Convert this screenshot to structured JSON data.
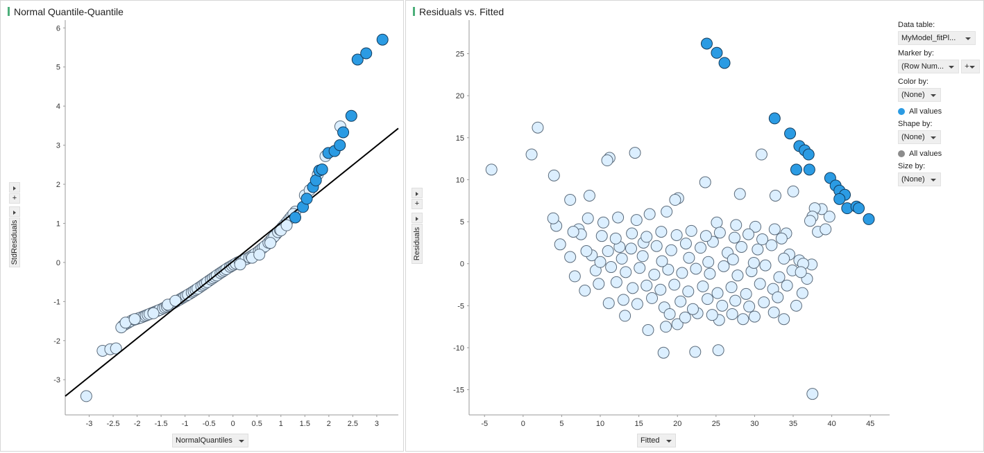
{
  "qq_panel": {
    "title": "Normal Quantile-Quantile",
    "x_button_label": "NormalQuantiles",
    "y_button_label": "StdResiduals",
    "plus_label": "+"
  },
  "rf_panel": {
    "title": "Residuals vs. Fitted",
    "x_button_label": "Fitted",
    "y_button_label": "Residuals",
    "plus_label": "+"
  },
  "legend": {
    "data_table_label": "Data table:",
    "data_table_value": "MyModel_fitPl...",
    "marker_by_label": "Marker by:",
    "marker_by_value": "(Row Num...",
    "marker_plus_label": "+",
    "color_by_label": "Color by:",
    "color_by_value": "(None)",
    "color_item_label": "All values",
    "color_item_color": "#2b9be3",
    "shape_by_label": "Shape by:",
    "shape_by_value": "(None)",
    "shape_item_label": "All values",
    "shape_item_color": "#8c8c8c",
    "size_by_label": "Size by:",
    "size_by_value": "(None)"
  },
  "colors": {
    "point_fill": "#dcefff",
    "point_stroke": "#5a6a7a",
    "marked_fill": "#2b9be3",
    "marked_stroke": "#123a5a",
    "ref_line": "#000000"
  },
  "chart_data": [
    {
      "type": "scatter",
      "title": "Normal Quantile-Quantile",
      "xlabel": "NormalQuantiles",
      "ylabel": "StdResiduals",
      "xlim": [
        -3.5,
        3.45
      ],
      "ylim": [
        -3.9,
        6.2
      ],
      "xticks": [
        -3,
        -2.5,
        -2,
        -1.5,
        -1,
        -0.5,
        0,
        0.5,
        1,
        1.5,
        2,
        2.5,
        3
      ],
      "yticks": [
        -3,
        -2,
        -1,
        0,
        1,
        2,
        3,
        4,
        5,
        6
      ],
      "reference_line": {
        "x": [
          -3.5,
          3.45
        ],
        "y": [
          -3.42,
          3.43
        ]
      },
      "qq_curve": {
        "x": [
          -2.3,
          -2.1,
          -1.9,
          -1.7,
          -1.5,
          -1.3,
          -1.1,
          -0.9,
          -0.7,
          -0.5,
          -0.3,
          -0.1,
          0.1,
          0.3,
          0.5,
          0.7,
          0.9,
          1.1,
          1.3
        ],
        "y": [
          -1.62,
          -1.48,
          -1.4,
          -1.3,
          -1.2,
          -1.08,
          -0.94,
          -0.8,
          -0.64,
          -0.47,
          -0.3,
          -0.14,
          0.0,
          0.1,
          0.25,
          0.45,
          0.72,
          1.0,
          1.3
        ]
      },
      "points_unmarked": [
        {
          "x": -3.06,
          "y": -3.42
        },
        {
          "x": -2.72,
          "y": -2.26
        },
        {
          "x": -2.56,
          "y": -2.22
        },
        {
          "x": -2.44,
          "y": -2.2
        },
        {
          "x": -2.33,
          "y": -1.66
        },
        {
          "x": -2.24,
          "y": -1.54
        },
        {
          "x": -2.05,
          "y": -1.45
        },
        {
          "x": -1.66,
          "y": -1.3
        },
        {
          "x": -1.36,
          "y": -1.08
        },
        {
          "x": -1.2,
          "y": -0.98
        },
        {
          "x": 0.15,
          "y": -0.05
        },
        {
          "x": 0.4,
          "y": 0.12
        },
        {
          "x": 0.55,
          "y": 0.2
        },
        {
          "x": 0.78,
          "y": 0.5
        },
        {
          "x": 1.0,
          "y": 0.82
        },
        {
          "x": 1.12,
          "y": 0.95
        },
        {
          "x": 1.5,
          "y": 1.72
        },
        {
          "x": 1.6,
          "y": 1.85
        },
        {
          "x": 1.77,
          "y": 2.25
        },
        {
          "x": 1.93,
          "y": 2.72
        },
        {
          "x": 2.24,
          "y": 3.48
        }
      ],
      "points_marked": [
        {
          "x": 1.3,
          "y": 1.15
        },
        {
          "x": 1.46,
          "y": 1.42
        },
        {
          "x": 1.54,
          "y": 1.63
        },
        {
          "x": 1.67,
          "y": 1.93
        },
        {
          "x": 1.73,
          "y": 2.1
        },
        {
          "x": 1.8,
          "y": 2.35
        },
        {
          "x": 1.86,
          "y": 2.38
        },
        {
          "x": 1.99,
          "y": 2.8
        },
        {
          "x": 2.12,
          "y": 2.85
        },
        {
          "x": 2.23,
          "y": 3.0
        },
        {
          "x": 2.3,
          "y": 3.33
        },
        {
          "x": 2.47,
          "y": 3.75
        },
        {
          "x": 2.6,
          "y": 5.19
        },
        {
          "x": 2.78,
          "y": 5.35
        },
        {
          "x": 3.12,
          "y": 5.7
        }
      ]
    },
    {
      "type": "scatter",
      "title": "Residuals vs. Fitted",
      "xlabel": "Fitted",
      "ylabel": "Residuals",
      "xlim": [
        -7,
        47.5
      ],
      "ylim": [
        -18,
        29
      ],
      "xticks": [
        -5,
        0,
        5,
        10,
        15,
        20,
        25,
        30,
        35,
        40,
        45
      ],
      "yticks": [
        -15,
        -10,
        -5,
        0,
        5,
        10,
        15,
        20,
        25
      ],
      "points_unmarked": [
        {
          "x": -4.1,
          "y": 11.2
        },
        {
          "x": 1.9,
          "y": 16.2
        },
        {
          "x": 1.1,
          "y": 13.0
        },
        {
          "x": 4.0,
          "y": 10.5
        },
        {
          "x": 11.2,
          "y": 12.6
        },
        {
          "x": 10.9,
          "y": 12.3
        },
        {
          "x": 14.5,
          "y": 13.2
        },
        {
          "x": 8.6,
          "y": 8.1
        },
        {
          "x": 6.1,
          "y": 7.6
        },
        {
          "x": 30.9,
          "y": 13.0
        },
        {
          "x": 23.6,
          "y": 9.7
        },
        {
          "x": 32.7,
          "y": 8.1
        },
        {
          "x": 35.0,
          "y": 8.6
        },
        {
          "x": 28.1,
          "y": 8.3
        },
        {
          "x": 20.1,
          "y": 7.8
        },
        {
          "x": 19.7,
          "y": 7.6
        },
        {
          "x": 18.2,
          "y": -10.6
        },
        {
          "x": 22.3,
          "y": -10.5
        },
        {
          "x": 25.3,
          "y": -10.3
        },
        {
          "x": 37.5,
          "y": -15.5
        },
        {
          "x": 39.7,
          "y": 5.6
        },
        {
          "x": 38.7,
          "y": 6.5
        },
        {
          "x": 37.8,
          "y": 6.6
        },
        {
          "x": 37.5,
          "y": 5.6
        },
        {
          "x": 37.2,
          "y": 5.1
        },
        {
          "x": 38.2,
          "y": 3.8
        },
        {
          "x": 39.2,
          "y": 4.1
        },
        {
          "x": 37.4,
          "y": -0.1
        },
        {
          "x": 36.8,
          "y": -1.8
        },
        {
          "x": 36.2,
          "y": -3.5
        },
        {
          "x": 35.4,
          "y": -5.0
        },
        {
          "x": 33.8,
          "y": -6.6
        },
        {
          "x": 32.5,
          "y": -5.8
        },
        {
          "x": 30.0,
          "y": -6.3
        },
        {
          "x": 27.1,
          "y": -6.0
        },
        {
          "x": 25.4,
          "y": -6.7
        },
        {
          "x": 22.6,
          "y": -5.9
        },
        {
          "x": 20.0,
          "y": -7.2
        },
        {
          "x": 18.5,
          "y": -7.5
        },
        {
          "x": 16.2,
          "y": -7.9
        },
        {
          "x": 13.2,
          "y": -6.2
        },
        {
          "x": 11.1,
          "y": -4.7
        },
        {
          "x": 8.0,
          "y": -3.2
        },
        {
          "x": 6.7,
          "y": -1.5
        },
        {
          "x": 6.1,
          "y": 0.8
        },
        {
          "x": 4.8,
          "y": 2.3
        },
        {
          "x": 4.3,
          "y": 4.5
        },
        {
          "x": 3.9,
          "y": 5.4
        },
        {
          "x": 7.2,
          "y": 4.1
        },
        {
          "x": 8.4,
          "y": 5.4
        },
        {
          "x": 10.4,
          "y": 4.9
        },
        {
          "x": 12.3,
          "y": 5.5
        },
        {
          "x": 14.7,
          "y": 5.2
        },
        {
          "x": 16.4,
          "y": 5.9
        },
        {
          "x": 18.6,
          "y": 6.2
        },
        {
          "x": 25.1,
          "y": 4.9
        },
        {
          "x": 27.6,
          "y": 4.6
        },
        {
          "x": 30.1,
          "y": 4.4
        },
        {
          "x": 32.6,
          "y": 4.1
        },
        {
          "x": 34.1,
          "y": 3.6
        },
        {
          "x": 8.9,
          "y": 1.0
        },
        {
          "x": 11.0,
          "y": 1.5
        },
        {
          "x": 12.5,
          "y": 2.0
        },
        {
          "x": 14.0,
          "y": 1.8
        },
        {
          "x": 15.6,
          "y": 2.5
        },
        {
          "x": 17.3,
          "y": 2.1
        },
        {
          "x": 19.2,
          "y": 1.6
        },
        {
          "x": 21.1,
          "y": 2.4
        },
        {
          "x": 23.0,
          "y": 1.9
        },
        {
          "x": 24.6,
          "y": 2.6
        },
        {
          "x": 26.5,
          "y": 1.3
        },
        {
          "x": 28.3,
          "y": 2.0
        },
        {
          "x": 30.4,
          "y": 1.7
        },
        {
          "x": 32.2,
          "y": 2.2
        },
        {
          "x": 34.5,
          "y": 1.1
        },
        {
          "x": 35.8,
          "y": 0.4
        },
        {
          "x": 9.4,
          "y": -0.8
        },
        {
          "x": 11.4,
          "y": -0.4
        },
        {
          "x": 13.3,
          "y": -1.0
        },
        {
          "x": 15.1,
          "y": -0.5
        },
        {
          "x": 17.0,
          "y": -1.3
        },
        {
          "x": 18.8,
          "y": -0.7
        },
        {
          "x": 20.6,
          "y": -1.1
        },
        {
          "x": 22.4,
          "y": -0.6
        },
        {
          "x": 24.2,
          "y": -1.2
        },
        {
          "x": 26.0,
          "y": -0.3
        },
        {
          "x": 27.8,
          "y": -1.4
        },
        {
          "x": 29.6,
          "y": -0.9
        },
        {
          "x": 31.4,
          "y": -0.2
        },
        {
          "x": 33.2,
          "y": -1.6
        },
        {
          "x": 34.9,
          "y": -0.8
        },
        {
          "x": 36.3,
          "y": 0.0
        },
        {
          "x": 9.8,
          "y": -2.4
        },
        {
          "x": 12.1,
          "y": -2.2
        },
        {
          "x": 14.2,
          "y": -2.9
        },
        {
          "x": 16.0,
          "y": -2.6
        },
        {
          "x": 17.8,
          "y": -3.1
        },
        {
          "x": 19.6,
          "y": -2.5
        },
        {
          "x": 21.4,
          "y": -3.3
        },
        {
          "x": 23.3,
          "y": -2.7
        },
        {
          "x": 25.2,
          "y": -3.5
        },
        {
          "x": 27.0,
          "y": -2.8
        },
        {
          "x": 28.9,
          "y": -3.6
        },
        {
          "x": 30.7,
          "y": -2.4
        },
        {
          "x": 32.4,
          "y": -3.0
        },
        {
          "x": 34.2,
          "y": -2.6
        },
        {
          "x": 13.0,
          "y": -4.3
        },
        {
          "x": 14.8,
          "y": -4.8
        },
        {
          "x": 16.7,
          "y": -4.1
        },
        {
          "x": 18.3,
          "y": -5.2
        },
        {
          "x": 20.4,
          "y": -4.5
        },
        {
          "x": 22.0,
          "y": -5.4
        },
        {
          "x": 23.9,
          "y": -4.2
        },
        {
          "x": 25.8,
          "y": -5.0
        },
        {
          "x": 27.5,
          "y": -4.4
        },
        {
          "x": 29.3,
          "y": -5.1
        },
        {
          "x": 31.2,
          "y": -4.6
        },
        {
          "x": 33.0,
          "y": -4.0
        },
        {
          "x": 14.1,
          "y": 3.6
        },
        {
          "x": 16.0,
          "y": 3.2
        },
        {
          "x": 17.9,
          "y": 3.8
        },
        {
          "x": 19.9,
          "y": 3.4
        },
        {
          "x": 21.8,
          "y": 3.9
        },
        {
          "x": 23.7,
          "y": 3.3
        },
        {
          "x": 25.5,
          "y": 3.7
        },
        {
          "x": 27.4,
          "y": 3.1
        },
        {
          "x": 29.2,
          "y": 3.5
        },
        {
          "x": 31.0,
          "y": 2.9
        },
        {
          "x": 33.5,
          "y": 3.0
        },
        {
          "x": 10.2,
          "y": 3.3
        },
        {
          "x": 12.0,
          "y": 3.0
        },
        {
          "x": 7.5,
          "y": 3.5
        },
        {
          "x": 6.5,
          "y": 3.8
        },
        {
          "x": 8.2,
          "y": 1.5
        },
        {
          "x": 10.0,
          "y": 0.2
        },
        {
          "x": 12.8,
          "y": 0.6
        },
        {
          "x": 15.5,
          "y": 0.9
        },
        {
          "x": 18.0,
          "y": 0.3
        },
        {
          "x": 21.5,
          "y": 0.7
        },
        {
          "x": 24.0,
          "y": 0.2
        },
        {
          "x": 27.2,
          "y": 0.5
        },
        {
          "x": 29.9,
          "y": 0.1
        },
        {
          "x": 33.8,
          "y": 0.6
        },
        {
          "x": 36.0,
          "y": -1.0
        },
        {
          "x": 19.0,
          "y": -6.0
        },
        {
          "x": 21.0,
          "y": -6.4
        },
        {
          "x": 24.5,
          "y": -6.1
        },
        {
          "x": 28.5,
          "y": -6.6
        }
      ],
      "points_marked": [
        {
          "x": 23.8,
          "y": 26.2
        },
        {
          "x": 25.1,
          "y": 25.1
        },
        {
          "x": 26.1,
          "y": 23.9
        },
        {
          "x": 32.6,
          "y": 17.3
        },
        {
          "x": 34.6,
          "y": 15.5
        },
        {
          "x": 35.8,
          "y": 14.0
        },
        {
          "x": 36.5,
          "y": 13.5
        },
        {
          "x": 37.0,
          "y": 13.0
        },
        {
          "x": 35.4,
          "y": 11.2
        },
        {
          "x": 37.1,
          "y": 11.2
        },
        {
          "x": 39.8,
          "y": 10.2
        },
        {
          "x": 40.5,
          "y": 9.3
        },
        {
          "x": 41.0,
          "y": 8.7
        },
        {
          "x": 41.7,
          "y": 8.2
        },
        {
          "x": 41.0,
          "y": 7.7
        },
        {
          "x": 42.0,
          "y": 6.6
        },
        {
          "x": 43.2,
          "y": 6.8
        },
        {
          "x": 43.5,
          "y": 6.6
        },
        {
          "x": 44.8,
          "y": 5.3
        }
      ]
    }
  ]
}
